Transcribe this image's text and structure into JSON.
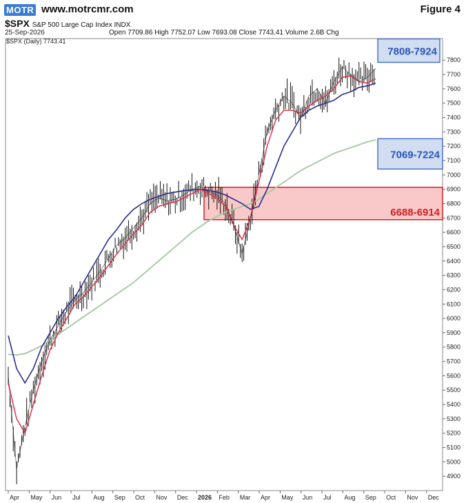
{
  "header": {
    "logo_text": "MOTR",
    "site": "www.motrcmr.com",
    "figure_label": "Figure 4",
    "symbol": "$SPX",
    "name": "S&P 500 Large Cap Index INDX",
    "date": "25-Sep-2026",
    "ohlc_text": "Open 7709.86  High 7752.07  Low 7693.08  Close 7743.41  Volume 2.6B  Chg",
    "legend_text": "$SPX (Daily) 7743.41"
  },
  "colors": {
    "price": "#111111",
    "ma_fast": "#d8324a",
    "ma_mid": "#2a2a8a",
    "ma_slow": "#a8cba4",
    "support_fill": "#f7b5b5",
    "support_border": "#d42020",
    "target_fill": "#c9d8f0",
    "target_border": "#4a72c4",
    "target_text": "#2b54b8",
    "support_text": "#d42020"
  },
  "chart_data": {
    "type": "line",
    "title": "",
    "ylim": [
      4800,
      7950
    ],
    "y_ticks": [
      4900,
      5000,
      5100,
      5200,
      5300,
      5400,
      5500,
      5600,
      5700,
      5800,
      5900,
      6000,
      6100,
      6200,
      6300,
      6400,
      6500,
      6600,
      6700,
      6800,
      6900,
      7000,
      7100,
      7200,
      7300,
      7400,
      7500,
      7600,
      7700,
      7800
    ],
    "x_tick_labels": [
      "Apr",
      "May",
      "Jun",
      "Jul",
      "Aug",
      "Sep",
      "Oct",
      "Nov",
      "Dec",
      "2026",
      "Feb",
      "Mar",
      "Apr",
      "May",
      "Jun",
      "Jul",
      "Aug",
      "Sep",
      "Oct",
      "Nov",
      "Dec"
    ],
    "series": [
      {
        "values": [
          5600,
          4950,
          5250,
          5500,
          5700,
          5850,
          5950,
          6050,
          6130,
          6180,
          6250,
          6330,
          6420,
          6510,
          6560,
          6630,
          6700,
          6800,
          6840,
          6820,
          6830,
          6860,
          6900,
          6920,
          6880,
          6860,
          6800,
          6650,
          6450,
          6700,
          7000,
          7300,
          7450,
          7550,
          7500,
          7400,
          7550,
          7600,
          7500,
          7650,
          7750,
          7700,
          7650,
          7680,
          7743
        ]
      },
      {
        "values": [
          5550,
          5300,
          5200,
          5400,
          5600,
          5780,
          5900,
          6000,
          6100,
          6150,
          6220,
          6290,
          6370,
          6450,
          6520,
          6590,
          6650,
          6740,
          6780,
          6800,
          6810,
          6840,
          6870,
          6900,
          6870,
          6840,
          6780,
          6650,
          6550,
          6700,
          6950,
          7200,
          7380,
          7450,
          7450,
          7430,
          7480,
          7520,
          7550,
          7600,
          7680,
          7690,
          7650,
          7640,
          7670
        ]
      },
      {
        "values": [
          5880,
          5650,
          5550,
          5650,
          5800,
          5900,
          6000,
          6080,
          6150,
          6250,
          6350,
          6450,
          6550,
          6620,
          6700,
          6760,
          6800,
          6830,
          6850,
          6870,
          6880,
          6890,
          6895,
          6900,
          6890,
          6880,
          6860,
          6830,
          6800,
          6760,
          6780,
          6900,
          7050,
          7200,
          7300,
          7400,
          7450,
          7480,
          7500,
          7520,
          7560,
          7580,
          7610,
          7620,
          7640
        ]
      },
      {
        "values": [
          5750,
          5745,
          5755,
          5780,
          5810,
          5850,
          5890,
          5930,
          5970,
          6010,
          6050,
          6090,
          6130,
          6170,
          6210,
          6250,
          6300,
          6350,
          6400,
          6450,
          6500,
          6550,
          6600,
          6640,
          6680,
          6710,
          6740,
          6760,
          6780,
          6800,
          6830,
          6870,
          6910,
          6950,
          6990,
          7030,
          7060,
          7090,
          7120,
          7150,
          7170,
          7190,
          7210,
          7230,
          7245
        ]
      }
    ],
    "zones": [
      {
        "label": "7808-7924",
        "low": 7808,
        "high": 7924
      },
      {
        "label": "7069-7224",
        "low": 7069,
        "high": 7224
      },
      {
        "label": "6688-6914",
        "low": 6688,
        "high": 6914
      }
    ]
  }
}
